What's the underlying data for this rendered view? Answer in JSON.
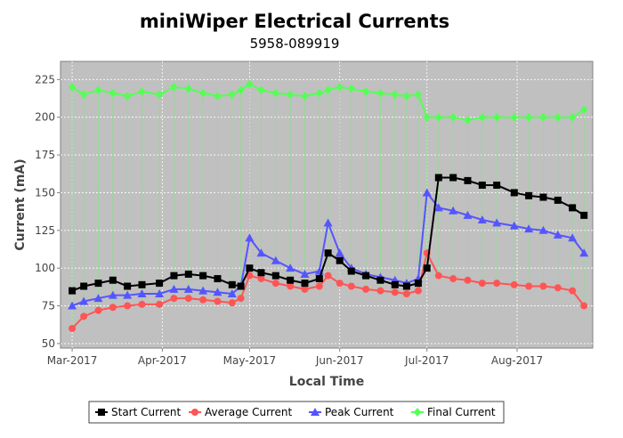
{
  "chart_data": {
    "type": "scatter",
    "title": "miniWiper Electrical Currents",
    "subtitle": "5958-089919",
    "xlabel": "Local Time",
    "ylabel": "Current (mA)",
    "ylim": [
      47,
      237
    ],
    "xlim": [
      "2017-02-25",
      "2017-08-27"
    ],
    "x_tick_labels": [
      "Mar-2017",
      "Apr-2017",
      "May-2017",
      "Jun-2017",
      "Jul-2017",
      "Aug-2017"
    ],
    "x_tick_dates": [
      "2017-03-01",
      "2017-04-01",
      "2017-05-01",
      "2017-06-01",
      "2017-07-01",
      "2017-08-01"
    ],
    "y_ticks": [
      50,
      75,
      100,
      125,
      150,
      175,
      200,
      225
    ],
    "grid": true,
    "legend_position": "bottom",
    "series": [
      {
        "name": "Start Current",
        "color": "#000000",
        "marker": "square",
        "x": [
          "2017-03-01",
          "2017-03-05",
          "2017-03-10",
          "2017-03-15",
          "2017-03-20",
          "2017-03-25",
          "2017-03-31",
          "2017-04-05",
          "2017-04-10",
          "2017-04-15",
          "2017-04-20",
          "2017-04-25",
          "2017-04-28",
          "2017-05-01",
          "2017-05-05",
          "2017-05-10",
          "2017-05-15",
          "2017-05-20",
          "2017-05-25",
          "2017-05-28",
          "2017-06-01",
          "2017-06-05",
          "2017-06-10",
          "2017-06-15",
          "2017-06-20",
          "2017-06-24",
          "2017-06-28",
          "2017-07-01",
          "2017-07-05",
          "2017-07-10",
          "2017-07-15",
          "2017-07-20",
          "2017-07-25",
          "2017-07-31",
          "2017-08-05",
          "2017-08-10",
          "2017-08-15",
          "2017-08-20",
          "2017-08-24"
        ],
        "y": [
          85,
          88,
          90,
          92,
          88,
          89,
          90,
          95,
          96,
          95,
          93,
          89,
          88,
          100,
          97,
          95,
          92,
          90,
          93,
          110,
          105,
          98,
          95,
          92,
          89,
          88,
          90,
          100,
          160,
          160,
          158,
          155,
          155,
          150,
          148,
          147,
          145,
          140,
          135
        ]
      },
      {
        "name": "Average Current",
        "color": "#ff5555",
        "marker": "circle",
        "x": [
          "2017-03-01",
          "2017-03-05",
          "2017-03-10",
          "2017-03-15",
          "2017-03-20",
          "2017-03-25",
          "2017-03-31",
          "2017-04-05",
          "2017-04-10",
          "2017-04-15",
          "2017-04-20",
          "2017-04-25",
          "2017-04-28",
          "2017-05-01",
          "2017-05-05",
          "2017-05-10",
          "2017-05-15",
          "2017-05-20",
          "2017-05-25",
          "2017-05-28",
          "2017-06-01",
          "2017-06-05",
          "2017-06-10",
          "2017-06-15",
          "2017-06-20",
          "2017-06-24",
          "2017-06-28",
          "2017-07-01",
          "2017-07-05",
          "2017-07-10",
          "2017-07-15",
          "2017-07-20",
          "2017-07-25",
          "2017-07-31",
          "2017-08-05",
          "2017-08-10",
          "2017-08-15",
          "2017-08-20",
          "2017-08-24"
        ],
        "y": [
          60,
          68,
          72,
          74,
          75,
          76,
          76,
          80,
          80,
          79,
          78,
          77,
          80,
          95,
          93,
          90,
          88,
          86,
          88,
          95,
          90,
          88,
          86,
          85,
          84,
          83,
          85,
          110,
          95,
          93,
          92,
          90,
          90,
          89,
          88,
          88,
          87,
          85,
          75
        ]
      },
      {
        "name": "Peak Current",
        "color": "#5555ff",
        "marker": "triangle",
        "x": [
          "2017-03-01",
          "2017-03-05",
          "2017-03-10",
          "2017-03-15",
          "2017-03-20",
          "2017-03-25",
          "2017-03-31",
          "2017-04-05",
          "2017-04-10",
          "2017-04-15",
          "2017-04-20",
          "2017-04-25",
          "2017-04-28",
          "2017-05-01",
          "2017-05-05",
          "2017-05-10",
          "2017-05-15",
          "2017-05-20",
          "2017-05-25",
          "2017-05-28",
          "2017-06-01",
          "2017-06-05",
          "2017-06-10",
          "2017-06-15",
          "2017-06-20",
          "2017-06-24",
          "2017-06-28",
          "2017-07-01",
          "2017-07-05",
          "2017-07-10",
          "2017-07-15",
          "2017-07-20",
          "2017-07-25",
          "2017-07-31",
          "2017-08-05",
          "2017-08-10",
          "2017-08-15",
          "2017-08-20",
          "2017-08-24"
        ],
        "y": [
          75,
          78,
          80,
          82,
          82,
          83,
          83,
          86,
          86,
          85,
          84,
          83,
          88,
          120,
          110,
          105,
          100,
          96,
          98,
          130,
          110,
          100,
          96,
          94,
          92,
          90,
          93,
          150,
          140,
          138,
          135,
          132,
          130,
          128,
          126,
          125,
          122,
          120,
          110
        ]
      },
      {
        "name": "Final Current",
        "color": "#55ff55",
        "marker": "diamond",
        "x": [
          "2017-03-01",
          "2017-03-05",
          "2017-03-10",
          "2017-03-15",
          "2017-03-20",
          "2017-03-25",
          "2017-03-31",
          "2017-04-05",
          "2017-04-10",
          "2017-04-15",
          "2017-04-20",
          "2017-04-25",
          "2017-04-28",
          "2017-05-01",
          "2017-05-05",
          "2017-05-10",
          "2017-05-15",
          "2017-05-20",
          "2017-05-25",
          "2017-05-28",
          "2017-06-01",
          "2017-06-05",
          "2017-06-10",
          "2017-06-15",
          "2017-06-20",
          "2017-06-24",
          "2017-06-28",
          "2017-07-01",
          "2017-07-05",
          "2017-07-10",
          "2017-07-15",
          "2017-07-20",
          "2017-07-25",
          "2017-07-31",
          "2017-08-05",
          "2017-08-10",
          "2017-08-15",
          "2017-08-20",
          "2017-08-24"
        ],
        "y": [
          220,
          215,
          218,
          216,
          214,
          217,
          215,
          220,
          219,
          216,
          214,
          215,
          218,
          222,
          218,
          216,
          215,
          214,
          216,
          218,
          220,
          219,
          217,
          216,
          215,
          214,
          215,
          200,
          200,
          200,
          198,
          200,
          200,
          200,
          200,
          200,
          200,
          200,
          205
        ]
      }
    ]
  }
}
